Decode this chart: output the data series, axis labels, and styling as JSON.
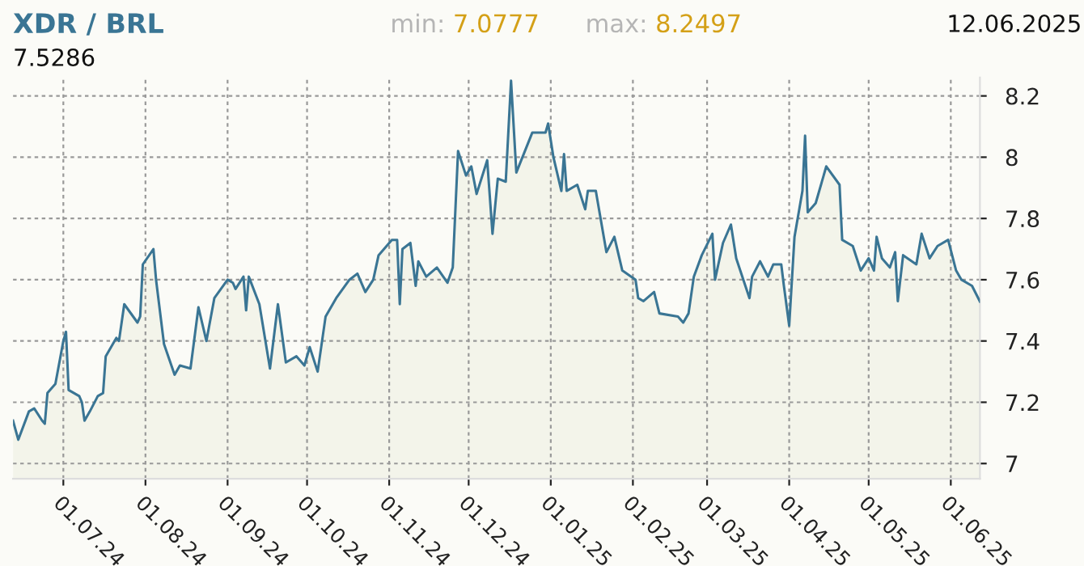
{
  "chart_data": {
    "type": "area",
    "title": "XDR / BRL",
    "annotations": [
      "min: 7.0777",
      "max: 8.2497",
      "12.06.2025",
      "7.5286"
    ],
    "x": [
      "2024-06-12",
      "2024-06-14",
      "2024-06-18",
      "2024-06-20",
      "2024-06-23",
      "2024-06-24",
      "2024-06-25",
      "2024-06-28",
      "2024-07-01",
      "2024-07-02",
      "2024-07-03",
      "2024-07-07",
      "2024-07-08",
      "2024-07-09",
      "2024-07-11",
      "2024-07-14",
      "2024-07-16",
      "2024-07-17",
      "2024-07-21",
      "2024-07-22",
      "2024-07-24",
      "2024-07-29",
      "2024-07-30",
      "2024-07-31",
      "2024-08-04",
      "2024-08-05",
      "2024-08-08",
      "2024-08-12",
      "2024-08-14",
      "2024-08-18",
      "2024-08-21",
      "2024-08-24",
      "2024-08-27",
      "2024-09-01",
      "2024-09-03",
      "2024-09-04",
      "2024-09-07",
      "2024-09-08",
      "2024-09-09",
      "2024-09-13",
      "2024-09-17",
      "2024-09-20",
      "2024-09-23",
      "2024-09-27",
      "2024-09-30",
      "2024-10-02",
      "2024-10-05",
      "2024-10-08",
      "2024-10-12",
      "2024-10-17",
      "2024-10-20",
      "2024-10-23",
      "2024-10-26",
      "2024-10-28",
      "2024-11-02",
      "2024-11-04",
      "2024-11-05",
      "2024-11-06",
      "2024-11-09",
      "2024-11-11",
      "2024-11-12",
      "2024-11-15",
      "2024-11-19",
      "2024-11-23",
      "2024-11-25",
      "2024-11-27",
      "2024-11-30",
      "2024-12-02",
      "2024-12-04",
      "2024-12-08",
      "2024-12-10",
      "2024-12-12",
      "2024-12-15",
      "2024-12-17",
      "2024-12-19",
      "2024-12-25",
      "2024-12-30",
      "2024-12-31",
      "2025-01-02",
      "2025-01-05",
      "2025-01-06",
      "2025-01-07",
      "2025-01-11",
      "2025-01-14",
      "2025-01-15",
      "2025-01-18",
      "2025-01-22",
      "2025-01-25",
      "2025-01-28",
      "2025-02-02",
      "2025-02-03",
      "2025-02-05",
      "2025-02-09",
      "2025-02-11",
      "2025-02-18",
      "2025-02-20",
      "2025-02-22",
      "2025-02-24",
      "2025-02-27",
      "2025-03-03",
      "2025-03-04",
      "2025-03-07",
      "2025-03-10",
      "2025-03-12",
      "2025-03-17",
      "2025-03-18",
      "2025-03-21",
      "2025-03-24",
      "2025-03-26",
      "2025-03-29",
      "2025-03-30",
      "2025-04-01",
      "2025-04-03",
      "2025-04-05",
      "2025-04-06",
      "2025-04-07",
      "2025-04-08",
      "2025-04-11",
      "2025-04-15",
      "2025-04-20",
      "2025-04-21",
      "2025-04-25",
      "2025-04-28",
      "2025-05-01",
      "2025-05-03",
      "2025-05-04",
      "2025-05-06",
      "2025-05-09",
      "2025-05-11",
      "2025-05-12",
      "2025-05-14",
      "2025-05-19",
      "2025-05-21",
      "2025-05-24",
      "2025-05-27",
      "2025-05-31",
      "2025-06-03",
      "2025-06-05",
      "2025-06-09",
      "2025-06-12"
    ],
    "series": [
      {
        "color": "#3a7594",
        "values": [
          7.14,
          7.0777,
          7.17,
          7.18,
          7.14,
          7.13,
          7.23,
          7.26,
          7.4,
          7.43,
          7.24,
          7.22,
          7.2,
          7.14,
          7.17,
          7.22,
          7.23,
          7.35,
          7.41,
          7.4,
          7.52,
          7.46,
          7.48,
          7.65,
          7.7,
          7.6,
          7.39,
          7.29,
          7.32,
          7.31,
          7.51,
          7.4,
          7.54,
          7.6,
          7.59,
          7.57,
          7.61,
          7.5,
          7.61,
          7.52,
          7.31,
          7.52,
          7.33,
          7.35,
          7.32,
          7.38,
          7.3,
          7.48,
          7.54,
          7.6,
          7.62,
          7.56,
          7.6,
          7.68,
          7.73,
          7.73,
          7.52,
          7.7,
          7.72,
          7.58,
          7.66,
          7.61,
          7.64,
          7.59,
          7.64,
          8.02,
          7.94,
          7.97,
          7.88,
          7.99,
          7.75,
          7.93,
          7.92,
          8.2497,
          7.95,
          8.08,
          8.08,
          8.11,
          8.0,
          7.89,
          8.01,
          7.89,
          7.91,
          7.83,
          7.89,
          7.89,
          7.69,
          7.74,
          7.63,
          7.6,
          7.54,
          7.53,
          7.56,
          7.49,
          7.48,
          7.46,
          7.49,
          7.61,
          7.68,
          7.75,
          7.6,
          7.72,
          7.78,
          7.67,
          7.54,
          7.61,
          7.66,
          7.61,
          7.65,
          7.65,
          7.58,
          7.45,
          7.74,
          7.84,
          7.89,
          8.07,
          7.82,
          7.85,
          7.97,
          7.91,
          7.73,
          7.71,
          7.63,
          7.67,
          7.63,
          7.74,
          7.67,
          7.64,
          7.69,
          7.53,
          7.68,
          7.65,
          7.75,
          7.67,
          7.71,
          7.73,
          7.63,
          7.6,
          7.58,
          7.5286
        ]
      }
    ],
    "xlim": [
      "2024-06-12",
      "2025-06-12"
    ],
    "xticks": [
      {
        "value": "2024-07-01",
        "label": "01.07.24"
      },
      {
        "value": "2024-08-01",
        "label": "01.08.24"
      },
      {
        "value": "2024-09-01",
        "label": "01.09.24"
      },
      {
        "value": "2024-10-01",
        "label": "01.10.24"
      },
      {
        "value": "2024-11-01",
        "label": "01.11.24"
      },
      {
        "value": "2024-12-01",
        "label": "01.12.24"
      },
      {
        "value": "2025-01-01",
        "label": "01.01.25"
      },
      {
        "value": "2025-02-01",
        "label": "01.02.25"
      },
      {
        "value": "2025-03-01",
        "label": "01.03.25"
      },
      {
        "value": "2025-04-01",
        "label": "01.04.25"
      },
      {
        "value": "2025-05-01",
        "label": "01.05.25"
      },
      {
        "value": "2025-06-01",
        "label": "01.06.25"
      }
    ],
    "ylim": [
      6.95,
      8.26
    ],
    "yticks": [
      7,
      7.2,
      7.4,
      7.6,
      7.8,
      8,
      8.2
    ],
    "grid": true,
    "line_style": "solid"
  }
}
